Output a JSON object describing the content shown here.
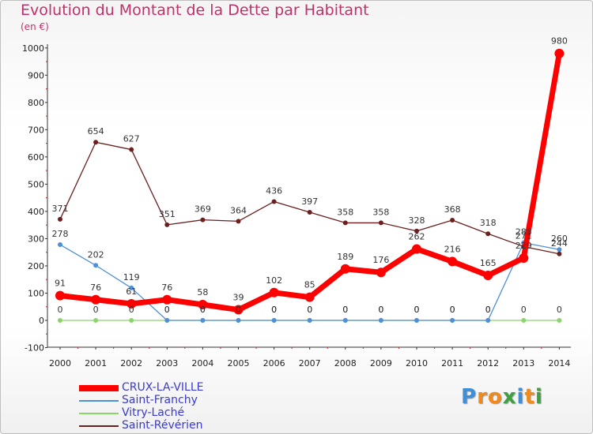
{
  "header": {
    "title": "Evolution du Montant de la Dette par Habitant",
    "unit": "(en €)"
  },
  "chart_data": {
    "type": "line",
    "ylim": [
      -100,
      1000
    ],
    "y_ticks": [
      -100,
      0,
      100,
      200,
      300,
      400,
      500,
      600,
      700,
      800,
      900,
      1000
    ],
    "x": [
      "2000",
      "2001",
      "2002",
      "2003",
      "2004",
      "2005",
      "2006",
      "2007",
      "2008",
      "2009",
      "2010",
      "2011",
      "2012",
      "2013",
      "2014"
    ],
    "grid": false,
    "legend_position": "bottom-left",
    "series": [
      {
        "name": "CRUX-LA-VILLE",
        "color": "#ff0000",
        "values": [
          91,
          76,
          61,
          76,
          58,
          39,
          102,
          85,
          189,
          176,
          262,
          216,
          165,
          229,
          980
        ],
        "labels": [
          "91",
          "76",
          "61",
          "76",
          "58",
          "39",
          "102",
          "85",
          "189",
          "176",
          "262",
          "216",
          "165",
          "229",
          "980"
        ]
      },
      {
        "name": "Saint-Franchy",
        "color": "#4f8fd8",
        "values": [
          278,
          202,
          119,
          0,
          0,
          0,
          0,
          0,
          0,
          0,
          0,
          0,
          0,
          285,
          260
        ],
        "labels": [
          "278",
          "202",
          "119",
          "0",
          "0",
          "0",
          "0",
          "0",
          "0",
          "0",
          "0",
          "0",
          "0",
          "285",
          "260"
        ]
      },
      {
        "name": "Vitry-Laché",
        "color": "#8ad46a",
        "values": [
          0,
          0,
          0,
          0,
          0,
          0,
          0,
          0,
          0,
          0,
          0,
          0,
          0,
          0,
          0
        ],
        "labels": [
          "0",
          "0",
          "0",
          "0",
          "0",
          "0",
          "0",
          "0",
          "0",
          "0",
          "0",
          "0",
          "0",
          "0",
          "0"
        ]
      },
      {
        "name": "Saint-Révérien",
        "color": "#6b1f1f",
        "values": [
          371,
          654,
          627,
          351,
          369,
          364,
          436,
          397,
          358,
          358,
          328,
          368,
          318,
          271,
          244
        ],
        "labels": [
          "371",
          "654",
          "627",
          "351",
          "369",
          "364",
          "436",
          "397",
          "358",
          "358",
          "328",
          "368",
          "318",
          "271",
          "244"
        ]
      }
    ]
  },
  "logo": {
    "letters": [
      {
        "ch": "P",
        "color": "#3f8fd8"
      },
      {
        "ch": "r",
        "color": "#f08a1c"
      },
      {
        "ch": "o",
        "color": "#f08a1c"
      },
      {
        "ch": "x",
        "color": "#3fa040"
      },
      {
        "ch": "i",
        "color": "#3f8fd8"
      },
      {
        "ch": "t",
        "color": "#f08a1c"
      },
      {
        "ch": "i",
        "color": "#3fa040"
      }
    ]
  }
}
